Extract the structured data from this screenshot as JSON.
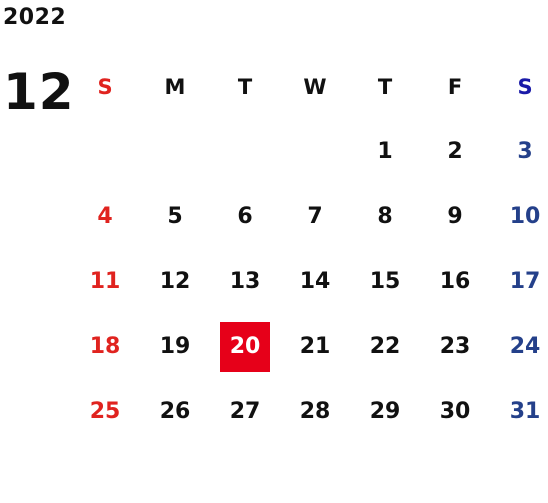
{
  "calendar": {
    "year": "2022",
    "month": "12",
    "weekdays": [
      "S",
      "M",
      "T",
      "W",
      "T",
      "F",
      "S"
    ],
    "today": "20",
    "weeks": [
      [
        "",
        "",
        "",
        "",
        "1",
        "2",
        "3"
      ],
      [
        "4",
        "5",
        "6",
        "7",
        "8",
        "9",
        "10"
      ],
      [
        "11",
        "12",
        "13",
        "14",
        "15",
        "16",
        "17"
      ],
      [
        "18",
        "19",
        "20",
        "21",
        "22",
        "23",
        "24"
      ],
      [
        "25",
        "26",
        "27",
        "28",
        "29",
        "30",
        "31"
      ]
    ]
  },
  "colors": {
    "sunday": "#e0231f",
    "saturday_header": "#1a1aa8",
    "saturday": "#24408a",
    "today_bg": "#e60019",
    "text": "#111111"
  }
}
